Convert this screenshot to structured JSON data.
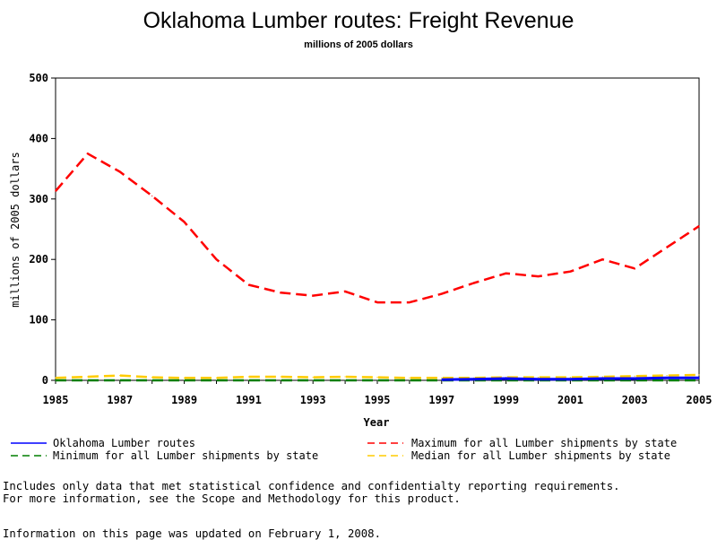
{
  "chart_data": {
    "type": "line",
    "title": "Oklahoma Lumber routes: Freight Revenue",
    "subtitle": "millions of 2005 dollars",
    "xlabel": "Year",
    "ylabel": "millions of 2005 dollars",
    "xlim": [
      1985,
      2005
    ],
    "ylim": [
      0,
      500
    ],
    "x_ticks": [
      "1985",
      "1987",
      "1989",
      "1991",
      "1993",
      "1995",
      "1997",
      "1999",
      "2001",
      "2003",
      "2005"
    ],
    "y_ticks": [
      "0",
      "100",
      "200",
      "300",
      "400",
      "500"
    ],
    "x": [
      1985,
      1986,
      1987,
      1988,
      1989,
      1990,
      1991,
      1992,
      1993,
      1994,
      1995,
      1996,
      1997,
      1998,
      1999,
      2000,
      2001,
      2002,
      2003,
      2004,
      2005
    ],
    "series": [
      {
        "name": "Oklahoma Lumber routes",
        "color": "#0000ff",
        "dash": "solid",
        "values": [
          null,
          null,
          null,
          null,
          null,
          null,
          null,
          null,
          null,
          null,
          null,
          null,
          1,
          2,
          3,
          2,
          2,
          3,
          3,
          4,
          4
        ]
      },
      {
        "name": "Minimum for all Lumber shipments by state",
        "color": "#007f00",
        "dash": "dashed",
        "values": [
          0,
          0,
          0,
          0,
          0,
          0,
          0,
          0,
          0,
          0,
          0,
          0,
          0,
          0,
          0,
          0,
          0,
          0,
          0,
          0,
          0
        ]
      },
      {
        "name": "Maximum for all Lumber shipments by state",
        "color": "#ff0000",
        "dash": "dashed",
        "values": [
          313,
          375,
          345,
          305,
          262,
          200,
          158,
          145,
          140,
          147,
          129,
          129,
          143,
          161,
          177,
          172,
          180,
          200,
          185,
          220,
          255
        ]
      },
      {
        "name": "Median for all Lumber shipments by state",
        "color": "#ffcc00",
        "dash": "dashed",
        "values": [
          4,
          6,
          8,
          5,
          4,
          4,
          6,
          6,
          5,
          6,
          5,
          4,
          4,
          4,
          5,
          5,
          5,
          6,
          7,
          8,
          9
        ]
      }
    ],
    "legend_position": "bottom"
  },
  "notes": {
    "line1": "Includes only data that met statistical confidence and confidentialty reporting requirements.",
    "line2": "For more information, see the Scope and Methodology for this product.",
    "updated": "Information on this page was updated on February 1, 2008."
  }
}
